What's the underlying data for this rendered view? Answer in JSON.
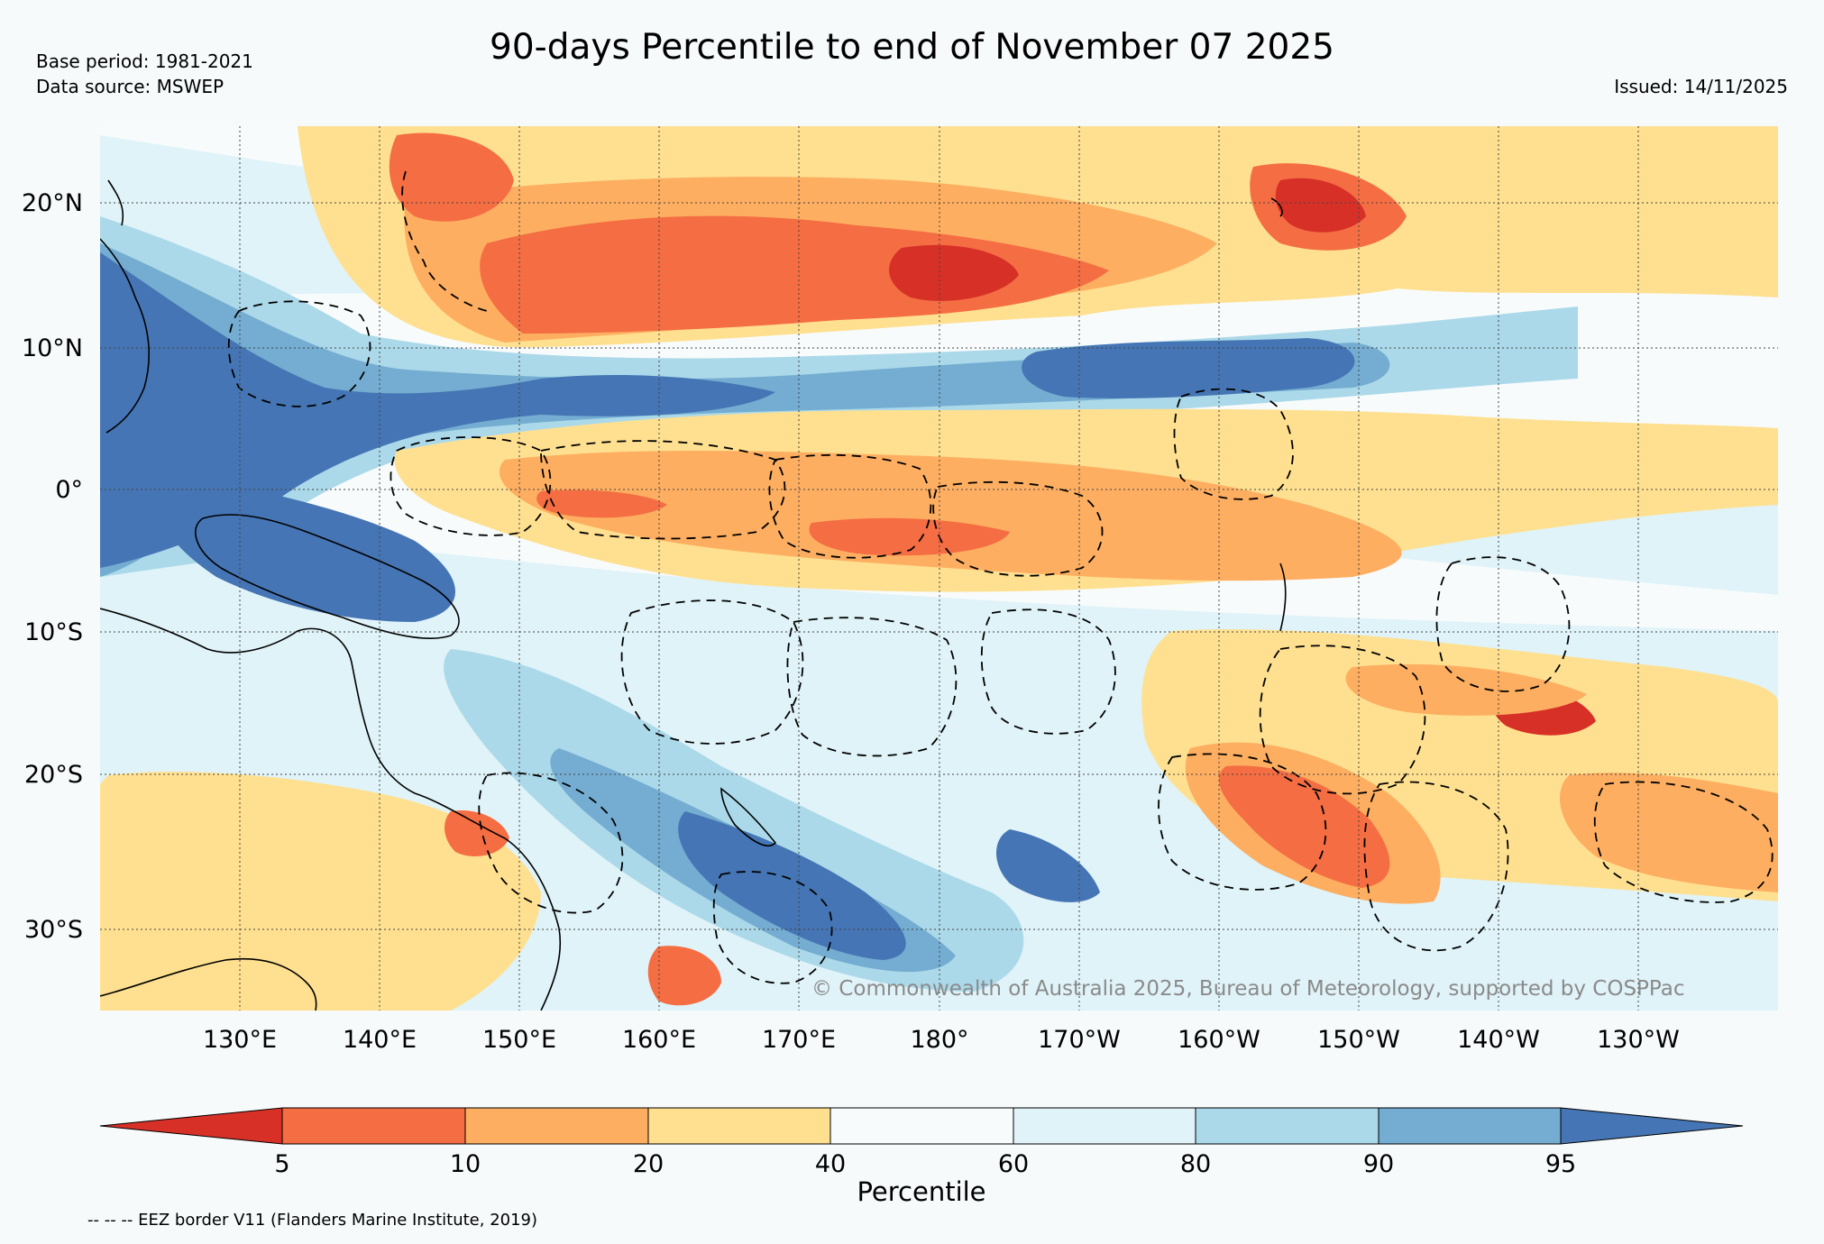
{
  "header": {
    "title": "90-days Percentile to end of November 07 2025",
    "base_period": "Base period: 1981-2021",
    "data_source": "Data source: MSWEP",
    "issued": "Issued: 14/11/2025"
  },
  "map": {
    "lat_labels": [
      "20°N",
      "10°N",
      "0°",
      "10°S",
      "20°S",
      "30°S"
    ],
    "lon_labels": [
      "130°E",
      "140°E",
      "150°E",
      "160°E",
      "170°E",
      "180°",
      "170°W",
      "160°W",
      "150°W",
      "140°W",
      "130°W"
    ],
    "copyright": "© Commonwealth of Australia 2025, Bureau of Meteorology, supported by COSPPac"
  },
  "legend": {
    "title": "Percentile",
    "ticks": [
      "5",
      "10",
      "20",
      "40",
      "60",
      "80",
      "90",
      "95"
    ],
    "colors": [
      "#d73027",
      "#f46d43",
      "#fdae61",
      "#fee090",
      "#f8fbfc",
      "#e0f3f8",
      "#abd9e9",
      "#74add1",
      "#4575b4"
    ],
    "eez_note": "-- -- -- EEZ border V11 (Flanders Marine Institute, 2019)"
  }
}
